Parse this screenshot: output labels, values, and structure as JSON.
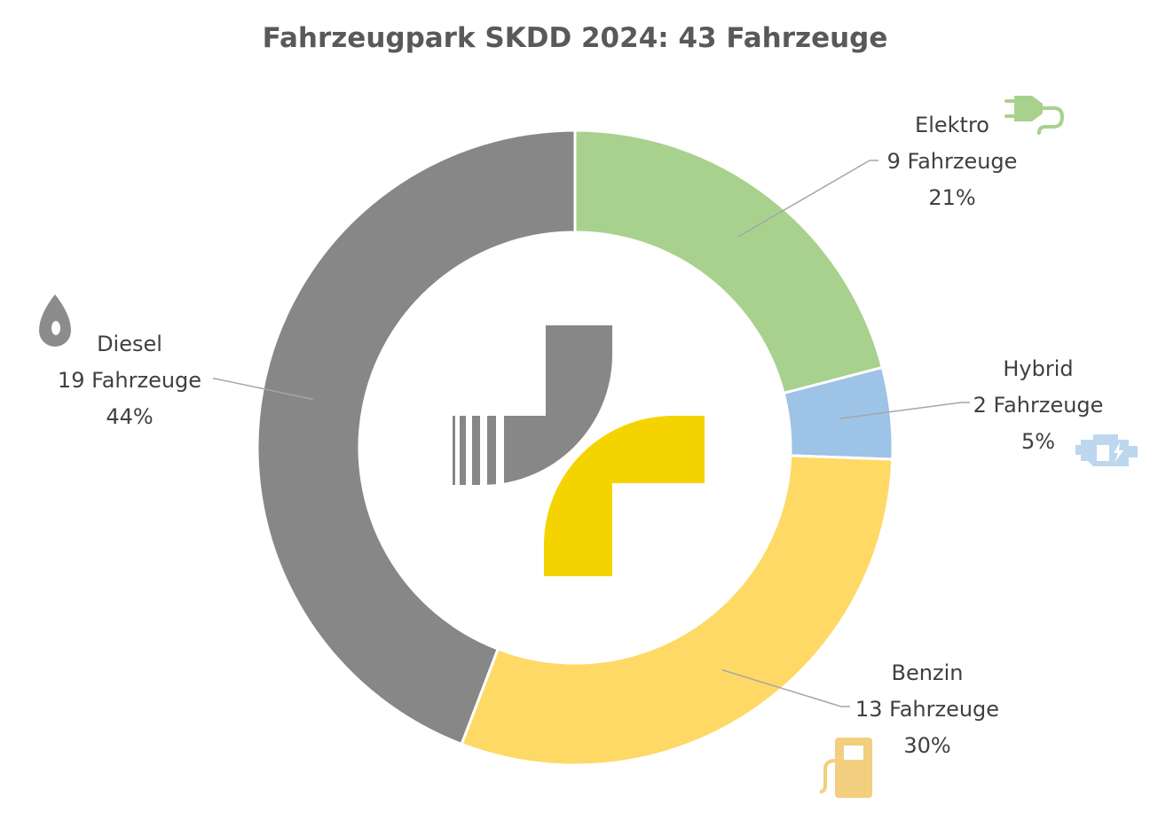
{
  "chart_data": {
    "type": "pie",
    "style": "doughnut",
    "title": "Fahrzeugpark SKDD 2024: 43 Fahrzeuge",
    "total": 43,
    "slices": [
      {
        "label": "Elektro",
        "count_text": "9 Fahrzeuge",
        "value": 9,
        "percent": "21%",
        "color": "#a9d18e",
        "icon": "electric-plug-icon",
        "icon_color": "#a9d18e"
      },
      {
        "label": "Hybrid",
        "count_text": "2 Fahrzeuge",
        "value": 2,
        "percent": "5%",
        "color": "#9dc3e6",
        "icon": "hybrid-engine-icon",
        "icon_color": "#bdd7ee"
      },
      {
        "label": "Benzin",
        "count_text": "13 Fahrzeuge",
        "value": 13,
        "percent": "30%",
        "color": "#ffd966",
        "icon": "fuel-pump-icon",
        "icon_color": "#f2cf7e"
      },
      {
        "label": "Diesel",
        "count_text": "19 Fahrzeuge",
        "value": 19,
        "percent": "44%",
        "color": "#878787",
        "icon": "oil-drop-icon",
        "icon_color": "#8c8c8c"
      }
    ],
    "center_logo": {
      "name": "skdd-logo",
      "colors": [
        "#878787",
        "#f5d300"
      ]
    }
  }
}
